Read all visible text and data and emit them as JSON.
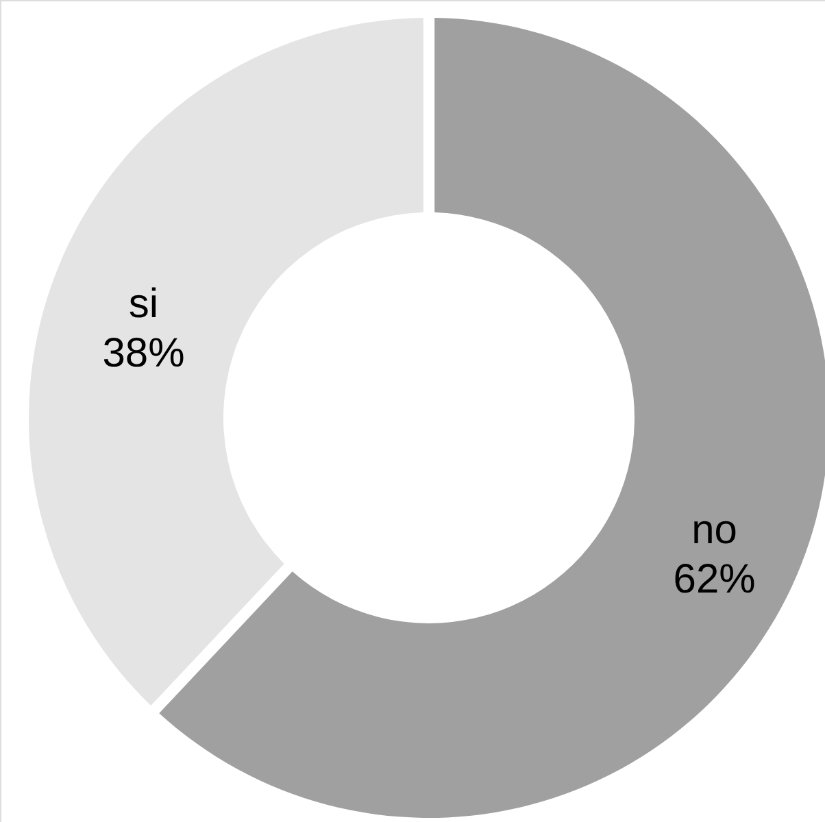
{
  "chart_data": {
    "type": "donut",
    "categories": [
      "no",
      "si"
    ],
    "values": [
      62,
      38
    ],
    "colors": [
      "#a0a0a0",
      "#e4e4e4"
    ],
    "value_labels": [
      "62%",
      "38%"
    ]
  }
}
